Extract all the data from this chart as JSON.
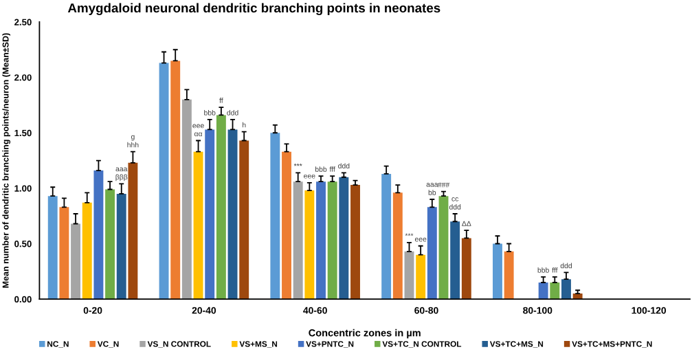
{
  "chart_data": {
    "type": "bar",
    "title": "Amygdaloid neuronal dendritic branching points in neonates",
    "xlabel": "Concentric zones in µm",
    "ylabel": "Mean number of dendritic branching points/neuron (Mean±SD)",
    "categories": [
      "0-20",
      "20-40",
      "40-60",
      "60-80",
      "80-100",
      "100-120"
    ],
    "series": [
      {
        "name": "NC_N",
        "color": "#5b9bd5",
        "values": [
          0.93,
          2.13,
          1.5,
          1.13,
          0.5,
          null
        ],
        "errors": [
          [
            0.93,
            1.01
          ],
          [
            2.13,
            2.23
          ],
          [
            1.5,
            1.57
          ],
          [
            1.13,
            1.2
          ],
          [
            0.5,
            0.57
          ],
          null
        ]
      },
      {
        "name": "VC_N",
        "color": "#ed7d31",
        "values": [
          0.83,
          2.15,
          1.33,
          0.96,
          0.43,
          null
        ],
        "errors": [
          [
            0.83,
            0.91
          ],
          [
            2.15,
            2.25
          ],
          [
            1.33,
            1.4
          ],
          [
            0.96,
            1.03
          ],
          [
            0.43,
            0.5
          ],
          null
        ]
      },
      {
        "name": "VS_N CONTROL",
        "color": "#a5a5a5",
        "values": [
          0.68,
          1.8,
          1.06,
          0.43,
          null,
          null
        ],
        "errors": [
          [
            0.68,
            0.77
          ],
          [
            1.8,
            1.89
          ],
          [
            1.06,
            1.14
          ],
          [
            0.43,
            0.51
          ],
          null,
          null
        ],
        "value_labels": [
          null,
          null,
          "***",
          "***",
          null,
          null
        ]
      },
      {
        "name": "VS+MS_N",
        "color": "#ffc000",
        "values": [
          0.87,
          1.33,
          0.98,
          0.4,
          null,
          null
        ],
        "errors": [
          [
            0.87,
            0.96
          ],
          [
            1.33,
            1.43
          ],
          [
            0.98,
            1.05
          ],
          [
            0.4,
            0.48
          ],
          null,
          null
        ],
        "value_labels": [
          null,
          "eee\nαα",
          "eee",
          "eee",
          null,
          null
        ]
      },
      {
        "name": "VS+PNTC_N",
        "color": "#4472c4",
        "values": [
          1.16,
          1.53,
          1.06,
          0.83,
          0.15,
          null
        ],
        "errors": [
          [
            1.16,
            1.25
          ],
          [
            1.53,
            1.62
          ],
          [
            1.06,
            1.11
          ],
          [
            0.83,
            0.9
          ],
          [
            0.15,
            0.2
          ],
          null
        ],
        "value_labels": [
          null,
          "bbb",
          "bbb",
          "aaa\nbb",
          "bbb",
          null
        ]
      },
      {
        "name": "VS+TC_N CONTROL",
        "color": "#70ad47",
        "values": [
          0.99,
          1.66,
          1.06,
          0.93,
          0.15,
          null
        ],
        "errors": [
          [
            0.99,
            1.06
          ],
          [
            1.66,
            1.73
          ],
          [
            1.06,
            1.11
          ],
          [
            0.93,
            0.97
          ],
          [
            0.15,
            0.2
          ],
          null
        ],
        "value_labels": [
          null,
          "ff",
          "fff",
          "###",
          "fff",
          null
        ]
      },
      {
        "name": "VS+TC+MS_N",
        "color": "#255e91",
        "values": [
          0.95,
          1.53,
          1.1,
          0.7,
          0.18,
          null
        ],
        "errors": [
          [
            0.95,
            1.04
          ],
          [
            1.53,
            1.62
          ],
          [
            1.1,
            1.14
          ],
          [
            0.7,
            0.77
          ],
          [
            0.18,
            0.24
          ],
          null
        ],
        "value_labels": [
          "aaa\nβββ",
          "ddd",
          "ddd",
          "cc\nddd",
          "ddd",
          null
        ]
      },
      {
        "name": "VS+TC+MS+PNTC_N",
        "color": "#9e480e",
        "values": [
          1.23,
          1.43,
          1.03,
          0.55,
          0.05,
          null
        ],
        "errors": [
          [
            1.23,
            1.33
          ],
          [
            1.43,
            1.51
          ],
          [
            1.03,
            1.07
          ],
          [
            0.55,
            0.62
          ],
          [
            0.05,
            0.08
          ],
          null
        ],
        "value_labels": [
          "g\nhhh",
          "h",
          null,
          "ΔΔ",
          null,
          null
        ]
      }
    ],
    "ylim": [
      0,
      2.5
    ],
    "yticks": [
      {
        "value": 0,
        "label": "0.00"
      },
      {
        "value": 0.5,
        "label": "0.50"
      },
      {
        "value": 1,
        "label": "1.00"
      },
      {
        "value": 1.5,
        "label": "1.50"
      },
      {
        "value": 2,
        "label": "2.00"
      },
      {
        "value": 2.5,
        "label": "2.50"
      }
    ],
    "grid": false,
    "legend": "bottom"
  }
}
